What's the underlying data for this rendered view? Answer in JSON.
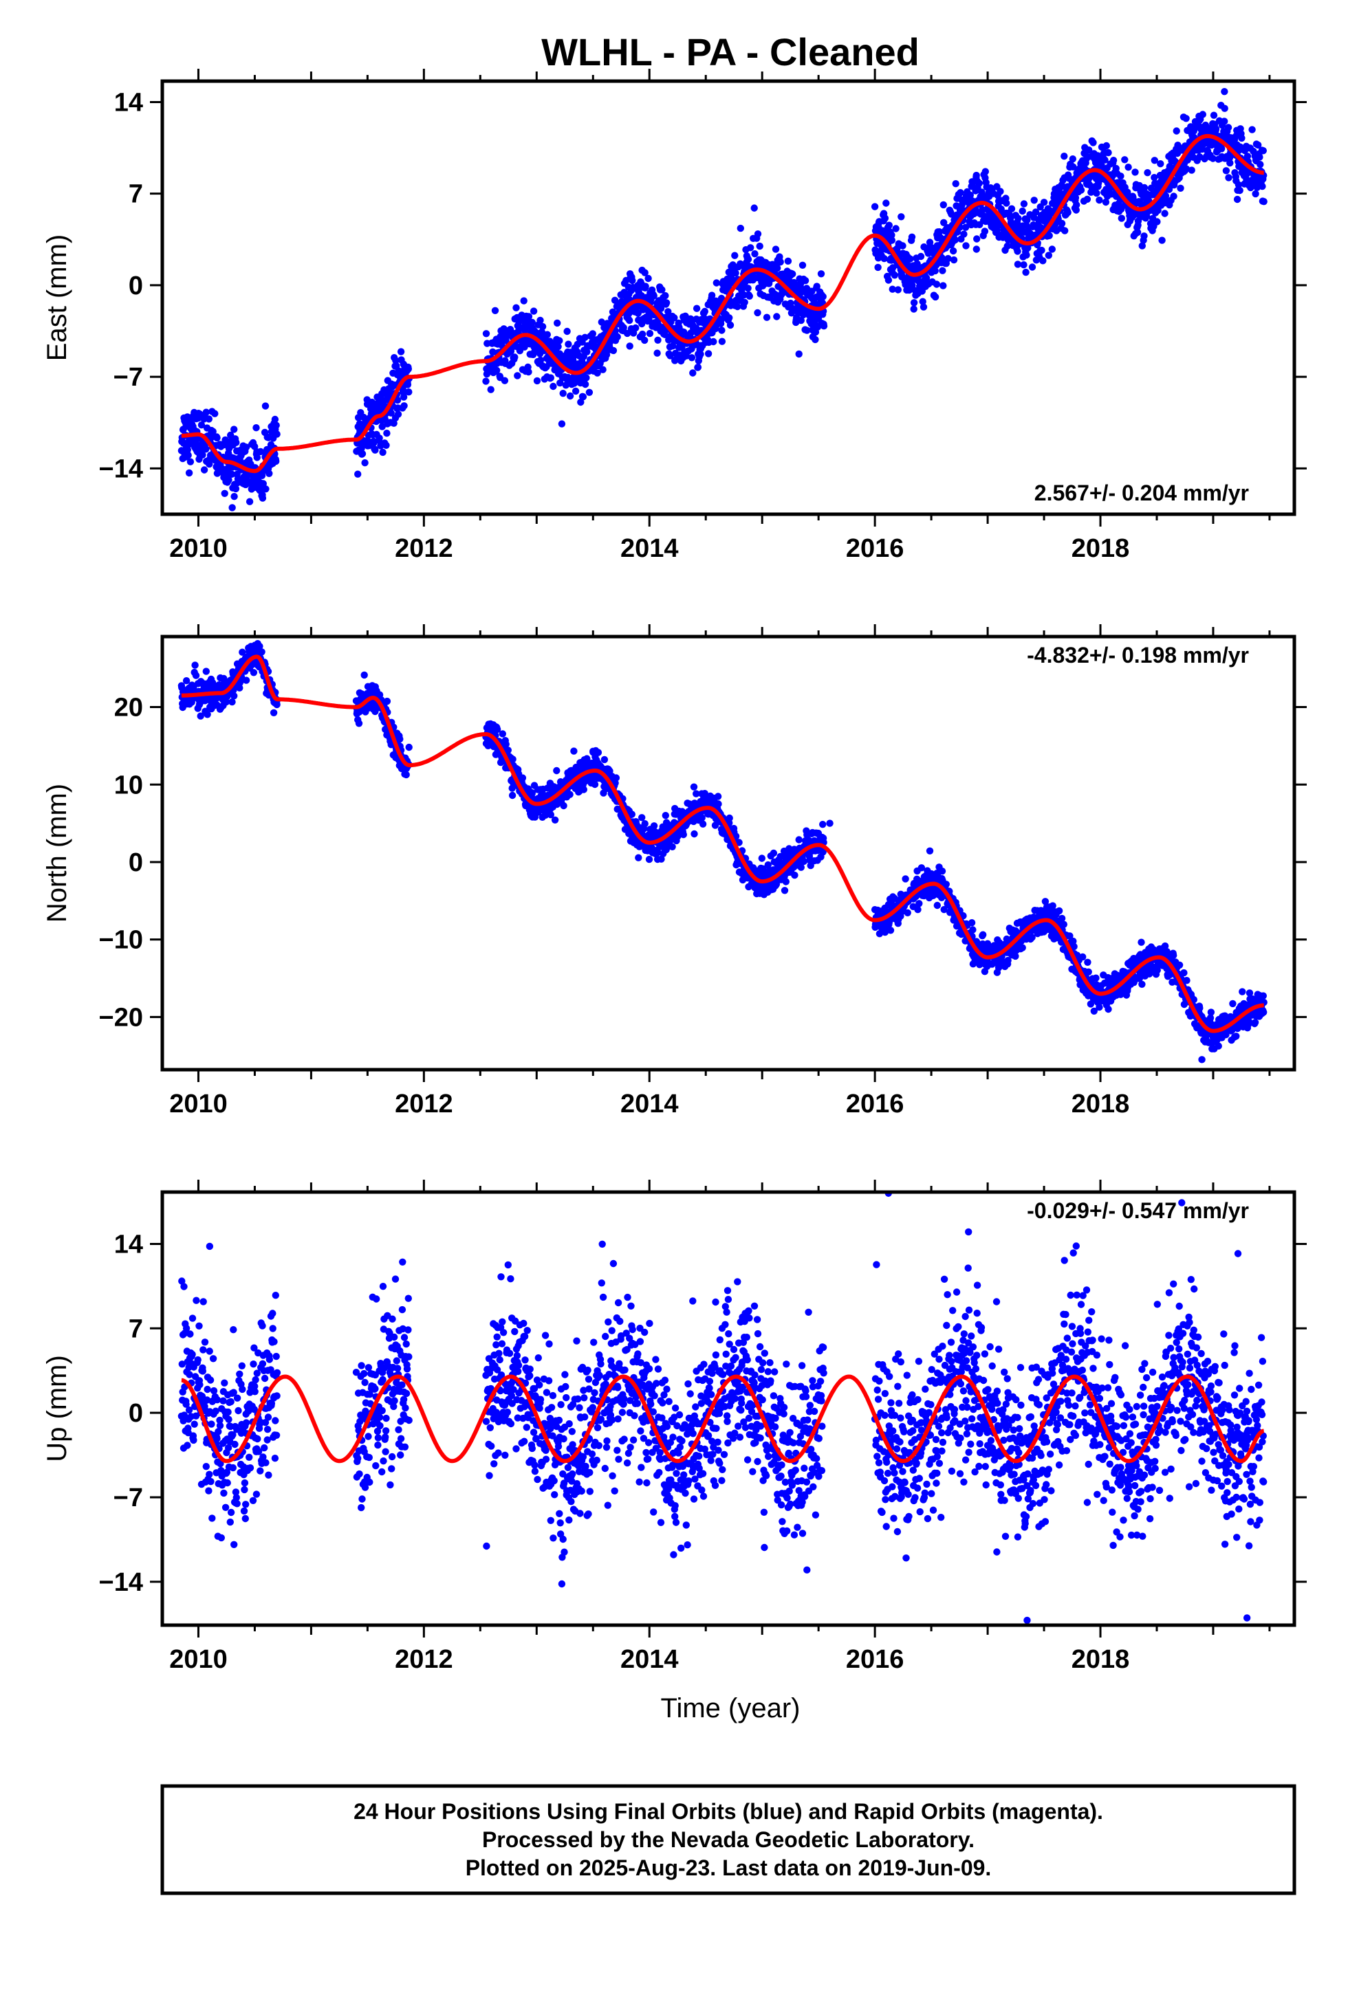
{
  "title": "WLHL  - PA - Cleaned",
  "colors": {
    "final_orbits": "#0000ff",
    "rapid_orbits": "#ff00ff",
    "model": "#ff0000",
    "axes": "#000000"
  },
  "xlabel": "Time (year)",
  "footnote": {
    "lines": [
      "24 Hour Positions Using Final Orbits (blue) and Rapid Orbits (magenta).",
      "Processed by the Nevada Geodetic Laboratory.",
      "Plotted on 2025-Aug-23. Last data on 2019-Jun-09."
    ]
  },
  "chart_data": [
    {
      "type": "scatter",
      "component": "east",
      "ylabel": "East (mm)",
      "xlim": [
        2009.68,
        2019.72
      ],
      "ylim": [
        -17.5,
        15.6
      ],
      "xticks": [
        2010,
        2012,
        2014,
        2016,
        2018
      ],
      "yticks": [
        -14,
        -7,
        0,
        7,
        14
      ],
      "rate_label": "2.567+/- 0.204 mm/yr",
      "rate_position": "bottom-right",
      "model": {
        "trend_mm_per_yr": 2.567,
        "value_at_2015": -0.5,
        "annual_amplitude": 2.9,
        "annual_peak_year_fraction": 0.0,
        "semiannual_amplitude": 0.0
      },
      "data_segments": [
        [
          2009.85,
          2010.7
        ],
        [
          2011.4,
          2011.87
        ],
        [
          2012.55,
          2015.55
        ],
        [
          2016.0,
          2019.45
        ]
      ],
      "scatter_sd": 1.1,
      "outliers": [
        {
          "x": 2010.3,
          "y": -17.0
        },
        {
          "x": 2014.93,
          "y": 5.9
        },
        {
          "x": 2016.9,
          "y": 8.4
        },
        {
          "x": 2019.1,
          "y": 14.8
        }
      ],
      "series": [
        {
          "name": "Final Orbits",
          "x": [
            2009.85,
            2010.0,
            2010.25,
            2010.5,
            2010.7,
            2011.4,
            2011.6,
            2011.87,
            2012.55,
            2012.9,
            2013.35,
            2013.9,
            2014.35,
            2014.95,
            2015.5,
            2016.0,
            2016.35,
            2016.95,
            2017.35,
            2017.95,
            2018.35,
            2018.95,
            2019.45
          ],
          "y": [
            -11.5,
            -11.4,
            -13.5,
            -14.2,
            -12.5,
            -11.8,
            -10.0,
            -7.0,
            -5.8,
            -3.8,
            -6.7,
            -1.2,
            -4.3,
            1.2,
            -1.8,
            3.8,
            0.8,
            6.3,
            3.2,
            8.8,
            5.8,
            11.4,
            8.6
          ]
        }
      ]
    },
    {
      "type": "scatter",
      "component": "north",
      "ylabel": "North (mm)",
      "xlim": [
        2009.68,
        2019.72
      ],
      "ylim": [
        -26.8,
        29.1
      ],
      "xticks": [
        2010,
        2012,
        2014,
        2016,
        2018
      ],
      "yticks": [
        -20,
        -10,
        0,
        10,
        20
      ],
      "rate_label": "-4.832+/- 0.198 mm/yr",
      "rate_position": "top-right",
      "model": {
        "trend_mm_per_yr": -4.832,
        "value_at_2015": 0.2,
        "annual_amplitude": 3.2,
        "annual_peak_year_fraction": 0.52,
        "semiannual_amplitude": 1.3
      },
      "data_segments": [
        [
          2009.85,
          2010.7
        ],
        [
          2011.4,
          2011.87
        ],
        [
          2012.55,
          2015.55
        ],
        [
          2016.0,
          2019.45
        ]
      ],
      "scatter_sd": 1.0,
      "outliers": [
        {
          "x": 2010.52,
          "y": 27.5
        },
        {
          "x": 2013.5,
          "y": 14.3
        },
        {
          "x": 2015.6,
          "y": 5.0
        },
        {
          "x": 2018.9,
          "y": -25.5
        }
      ],
      "series": [
        {
          "name": "Final Orbits",
          "x": [
            2009.85,
            2010.2,
            2010.52,
            2010.7,
            2011.4,
            2011.55,
            2011.87,
            2012.55,
            2013.0,
            2013.52,
            2014.0,
            2014.52,
            2015.0,
            2015.5,
            2016.0,
            2016.52,
            2017.0,
            2017.52,
            2018.0,
            2018.52,
            2019.0,
            2019.45
          ],
          "y": [
            21.5,
            21.8,
            26.5,
            21.0,
            20.0,
            21.2,
            12.5,
            16.5,
            7.5,
            11.8,
            2.5,
            7.0,
            -2.5,
            2.2,
            -7.5,
            -2.8,
            -12.3,
            -7.5,
            -17.0,
            -12.3,
            -21.8,
            -18.5
          ]
        }
      ]
    },
    {
      "type": "scatter",
      "component": "up",
      "ylabel": "Up (mm)",
      "xlim": [
        2009.68,
        2019.72
      ],
      "ylim": [
        -17.6,
        18.3
      ],
      "xticks": [
        2010,
        2012,
        2014,
        2016,
        2018
      ],
      "yticks": [
        -14,
        -7,
        0,
        7,
        14
      ],
      "rate_label": "-0.029+/- 0.547 mm/yr",
      "rate_position": "top-right",
      "model": {
        "trend_mm_per_yr": -0.029,
        "value_at_2015": -0.5,
        "annual_amplitude": 3.5,
        "annual_peak_year_fraction": 0.77,
        "semiannual_amplitude": 0.0
      },
      "data_segments": [
        [
          2009.85,
          2010.7
        ],
        [
          2011.4,
          2011.87
        ],
        [
          2012.55,
          2015.55
        ],
        [
          2016.0,
          2019.45
        ]
      ],
      "scatter_sd": 3.4,
      "outliers": [
        {
          "x": 2016.12,
          "y": 18.2
        },
        {
          "x": 2016.83,
          "y": 15.0
        },
        {
          "x": 2017.35,
          "y": -17.2
        },
        {
          "x": 2019.3,
          "y": -17.0
        },
        {
          "x": 2010.1,
          "y": 13.8
        },
        {
          "x": 2019.22,
          "y": 13.2
        }
      ],
      "series": [
        {
          "name": "Final Orbits",
          "x": [
            2009.85,
            2010.25,
            2010.77,
            2011.25,
            2011.77,
            2012.25,
            2012.77,
            2013.25,
            2013.77,
            2014.25,
            2014.77,
            2015.25,
            2015.77,
            2016.25,
            2016.77,
            2017.25,
            2017.77,
            2018.25,
            2018.77,
            2019.25,
            2019.45
          ],
          "y": [
            2.7,
            -4.0,
            3.0,
            -4.0,
            3.0,
            -4.0,
            3.0,
            -4.0,
            3.0,
            -4.0,
            3.0,
            -4.0,
            3.0,
            -4.0,
            3.0,
            -4.0,
            3.0,
            -4.0,
            3.0,
            -4.0,
            -1.5
          ]
        }
      ]
    }
  ]
}
